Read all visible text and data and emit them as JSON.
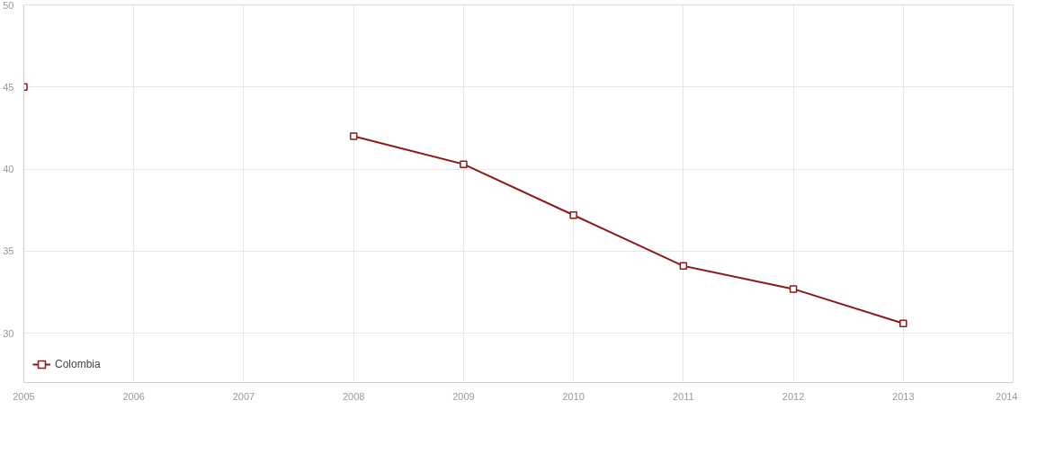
{
  "chart_data": {
    "type": "line",
    "x": [
      2005,
      2006,
      2007,
      2008,
      2009,
      2010,
      2011,
      2012,
      2013
    ],
    "series": [
      {
        "name": "Colombia",
        "color": "#8b1a1a",
        "values": [
          45,
          null,
          null,
          42.0,
          40.3,
          37.2,
          34.1,
          32.7,
          30.6
        ]
      }
    ],
    "xlim": [
      2005,
      2014
    ],
    "xticks": [
      2005,
      2006,
      2007,
      2008,
      2009,
      2010,
      2011,
      2012,
      2013,
      2014
    ],
    "ylim": [
      27,
      50
    ],
    "yticks": [
      30,
      35,
      40,
      45,
      50
    ],
    "grid": true,
    "legend": "bottom left",
    "marker": "square",
    "line_style": "solid"
  }
}
